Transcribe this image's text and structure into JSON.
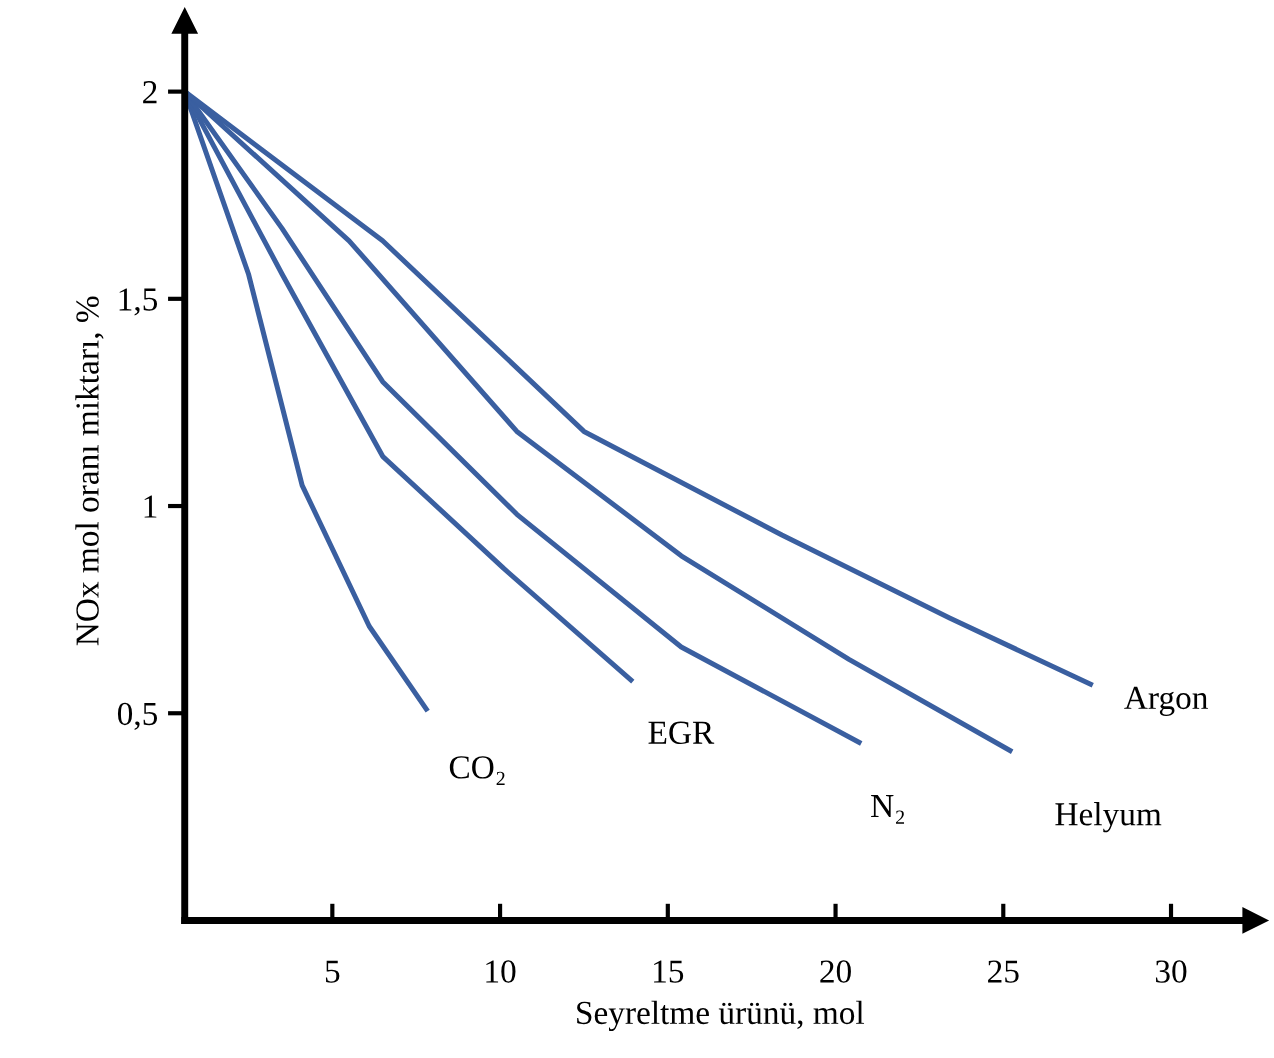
{
  "chart_data": {
    "type": "line",
    "xlabel": "Seyreltme ürünü, mol",
    "ylabel": "NOx mol oranı miktarı, %",
    "xlim": [
      0.6,
      32.5
    ],
    "ylim": [
      0,
      2.17
    ],
    "xticks": [
      5,
      10,
      15,
      20,
      25,
      30
    ],
    "yticks": [
      {
        "value": 0.5,
        "label": "0,5"
      },
      {
        "value": 1,
        "label": "1"
      },
      {
        "value": 1.5,
        "label": "1,5"
      },
      {
        "value": 2,
        "label": "2"
      }
    ],
    "grid": false,
    "legend": false,
    "marker": "none",
    "line_style": "solid",
    "series": [
      {
        "name": "CO₂",
        "color": "#3a5fa0",
        "x": [
          0.6,
          2.5,
          4.1,
          6.1,
          7.8
        ],
        "values": [
          2.0,
          1.56,
          1.05,
          0.71,
          0.51
        ]
      },
      {
        "name": "EGR",
        "color": "#3a5fa0",
        "x": [
          0.6,
          3.5,
          6.5,
          10.1,
          13.9
        ],
        "values": [
          2.0,
          1.56,
          1.12,
          0.85,
          0.58
        ]
      },
      {
        "name": "N₂",
        "color": "#3a5fa0",
        "x": [
          0.6,
          3.5,
          6.5,
          10.5,
          15.4,
          20.7
        ],
        "values": [
          2.0,
          1.67,
          1.3,
          0.98,
          0.66,
          0.43
        ]
      },
      {
        "name": "Helyum",
        "color": "#3a5fa0",
        "x": [
          0.6,
          5.5,
          10.5,
          15.4,
          20.4,
          25.2
        ],
        "values": [
          2.0,
          1.64,
          1.18,
          0.88,
          0.63,
          0.41
        ]
      },
      {
        "name": "Argon",
        "color": "#3a5fa0",
        "x": [
          0.6,
          6.5,
          12.5,
          18.4,
          23.4,
          27.6
        ],
        "values": [
          2.0,
          1.64,
          1.18,
          0.93,
          0.73,
          0.57
        ]
      }
    ]
  }
}
